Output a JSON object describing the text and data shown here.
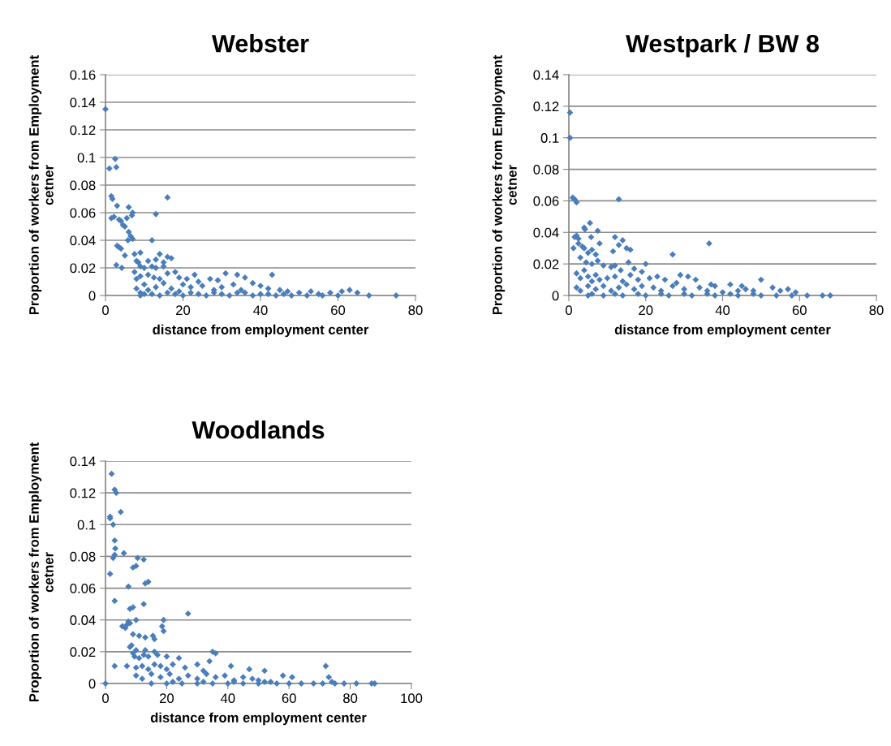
{
  "chart_data": [
    {
      "type": "scatter",
      "title": "Webster",
      "xlabel": "distance from employment center",
      "ylabel": "Proportion of workers from Employment\ncetner",
      "xlim": [
        0,
        80
      ],
      "xticks": [
        0,
        20,
        40,
        60,
        80
      ],
      "ylim": [
        0,
        0.16
      ],
      "yticks": [
        0,
        0.02,
        0.04,
        0.06,
        0.08,
        0.1,
        0.12,
        0.14,
        0.16
      ],
      "grid": "y",
      "marker": "diamond",
      "series": [
        {
          "color": "#4a7ebb",
          "x": [
            0,
            1,
            2.5,
            2.8,
            1.5,
            1.8,
            3,
            6,
            2.2,
            1.5,
            7,
            6.8,
            5.5,
            4,
            3.5,
            4.5,
            5,
            6,
            6.5,
            5.8,
            7,
            13,
            16,
            3,
            3.5,
            4,
            2.8,
            4.2,
            5,
            7.5,
            8,
            8.5,
            9,
            12,
            11,
            13,
            14,
            15,
            16,
            17,
            7.5,
            9,
            10,
            12,
            13,
            15,
            8,
            9,
            11,
            12.5,
            14,
            16,
            18,
            19,
            21,
            23,
            24,
            27,
            29,
            31,
            34,
            36,
            43,
            8,
            9,
            10,
            11,
            13,
            15,
            17,
            19,
            20,
            22,
            25,
            28,
            30,
            33,
            35,
            38,
            40,
            42,
            45,
            47,
            50,
            53,
            55,
            58,
            61,
            63,
            65,
            68,
            75,
            60,
            56,
            52,
            48,
            44,
            38,
            32,
            26,
            20,
            14,
            9,
            12,
            18,
            24,
            30,
            36,
            42,
            46,
            40,
            34,
            28,
            22,
            16,
            10
          ],
          "values": [
            0.135,
            0.092,
            0.099,
            0.093,
            0.072,
            0.07,
            0.065,
            0.064,
            0.057,
            0.056,
            0.06,
            0.058,
            0.056,
            0.054,
            0.055,
            0.051,
            0.05,
            0.046,
            0.043,
            0.04,
            0.041,
            0.059,
            0.071,
            0.036,
            0.035,
            0.034,
            0.022,
            0.02,
            0.029,
            0.03,
            0.025,
            0.024,
            0.031,
            0.04,
            0.025,
            0.026,
            0.03,
            0.024,
            0.028,
            0.027,
            0.017,
            0.021,
            0.02,
            0.021,
            0.02,
            0.021,
            0.012,
            0.014,
            0.015,
            0.013,
            0.012,
            0.016,
            0.017,
            0.013,
            0.012,
            0.015,
            0.01,
            0.012,
            0.011,
            0.016,
            0.015,
            0.013,
            0.015,
            0.005,
            0.002,
            0.008,
            0.004,
            0.006,
            0.009,
            0.005,
            0.003,
            0.008,
            0.006,
            0.007,
            0.004,
            0.006,
            0.008,
            0.004,
            0.009,
            0.007,
            0.005,
            0.004,
            0.003,
            0.002,
            0.003,
            0.001,
            0.002,
            0.003,
            0.004,
            0.002,
            0,
            0,
            0,
            0,
            0,
            0,
            0,
            0,
            0,
            0,
            0,
            0,
            0,
            0.001,
            0.001,
            0.001,
            0.001,
            0.002,
            0.001,
            0.001,
            0.001,
            0.002,
            0.002,
            0.002,
            0.002,
            0.001
          ]
        }
      ]
    },
    {
      "type": "scatter",
      "title": "Westpark / BW 8",
      "xlabel": "distance from employment center",
      "ylabel": "Proportion of workers from Employment\ncetner",
      "xlim": [
        0,
        80
      ],
      "xticks": [
        0,
        20,
        40,
        60,
        80
      ],
      "ylim": [
        0,
        0.14
      ],
      "yticks": [
        0,
        0.02,
        0.04,
        0.06,
        0.08,
        0.1,
        0.12,
        0.14
      ],
      "grid": "y",
      "marker": "diamond",
      "series": [
        {
          "color": "#4a7ebb",
          "x": [
            0.3,
            0.3,
            1,
            1.5,
            2,
            13,
            36.5,
            27,
            5.5,
            4,
            4.2,
            7.5,
            1.5,
            2,
            2.5,
            5.8,
            8,
            12,
            14,
            13,
            11.5,
            15,
            16,
            1.2,
            2.5,
            3.5,
            4,
            5,
            6,
            7,
            3,
            4.5,
            6,
            7.5,
            9,
            11,
            12,
            13.5,
            15.5,
            17,
            19,
            20,
            2,
            3,
            4,
            5,
            6,
            7,
            8,
            10,
            12,
            14,
            16,
            18,
            21,
            23,
            25,
            28,
            29,
            31,
            33,
            37,
            38,
            42,
            45,
            50,
            46,
            48,
            53,
            55,
            57,
            59,
            2,
            3,
            5,
            7,
            9,
            11,
            13,
            15,
            17,
            19,
            22,
            24,
            27,
            30,
            34,
            36,
            40,
            44,
            5,
            9,
            14,
            20,
            26,
            32,
            38,
            44,
            50,
            54,
            58,
            62,
            66,
            68,
            6,
            12,
            18,
            24,
            30,
            36,
            42,
            48
          ],
          "values": [
            0.116,
            0.1,
            0.062,
            0.061,
            0.059,
            0.061,
            0.033,
            0.026,
            0.046,
            0.043,
            0.042,
            0.041,
            0.037,
            0.038,
            0.036,
            0.037,
            0.033,
            0.037,
            0.035,
            0.032,
            0.028,
            0.03,
            0.029,
            0.03,
            0.033,
            0.031,
            0.03,
            0.027,
            0.029,
            0.026,
            0.024,
            0.021,
            0.02,
            0.022,
            0.019,
            0.018,
            0.019,
            0.016,
            0.021,
            0.017,
            0.015,
            0.02,
            0.014,
            0.011,
            0.016,
            0.012,
            0.009,
            0.013,
            0.01,
            0.011,
            0.012,
            0.009,
            0.013,
            0.01,
            0.011,
            0.012,
            0.01,
            0.008,
            0.013,
            0.012,
            0.01,
            0.007,
            0.006,
            0.007,
            0.006,
            0.01,
            0.004,
            0.003,
            0.005,
            0.003,
            0.004,
            0.002,
            0.005,
            0.003,
            0.006,
            0.004,
            0.006,
            0.003,
            0.005,
            0.007,
            0.004,
            0.006,
            0.005,
            0.003,
            0.006,
            0.004,
            0.005,
            0.003,
            0.002,
            0.003,
            0,
            0,
            0,
            0,
            0,
            0,
            0,
            0,
            0,
            0,
            0,
            0,
            0,
            0,
            0.001,
            0.001,
            0.001,
            0.001,
            0.001,
            0.001,
            0.001,
            0.001
          ]
        }
      ]
    },
    {
      "type": "scatter",
      "title": "Woodlands",
      "xlabel": "distance from employment center",
      "ylabel": "Proportion of workers from Employment\ncetner",
      "xlim": [
        0,
        100
      ],
      "xticks": [
        0,
        20,
        40,
        60,
        80,
        100
      ],
      "ylim": [
        0,
        0.14
      ],
      "yticks": [
        0,
        0.02,
        0.04,
        0.06,
        0.08,
        0.1,
        0.12,
        0.14
      ],
      "grid": "y",
      "marker": "diamond",
      "series": [
        {
          "color": "#4a7ebb",
          "x": [
            0,
            2,
            3,
            3.5,
            1.5,
            1.5,
            2.5,
            5,
            3,
            3.2,
            2.5,
            3,
            6,
            1.5,
            3,
            7.5,
            10.5,
            12.5,
            13,
            14,
            9,
            10,
            12.5,
            8,
            9,
            5.5,
            6.5,
            7,
            7.5,
            10,
            19,
            18.5,
            19,
            27,
            8,
            9,
            11,
            13,
            15.5,
            16,
            8,
            8.5,
            10,
            13,
            16,
            9,
            9.5,
            11,
            12.5,
            14,
            17,
            20,
            24,
            3,
            7,
            10,
            12,
            14,
            16,
            18,
            20,
            22,
            26,
            30,
            32,
            35,
            36,
            34,
            41,
            47,
            52,
            58,
            61,
            72,
            73,
            10,
            12,
            15,
            18,
            21,
            24,
            27,
            30,
            33,
            36,
            39,
            42,
            45,
            48,
            50,
            54,
            56,
            60,
            64,
            68,
            71,
            75,
            78,
            82,
            87,
            88,
            15,
            20,
            25,
            30,
            35,
            40,
            45,
            50,
            22,
            32,
            42,
            52,
            74
          ],
          "values": [
            0,
            0.132,
            0.122,
            0.12,
            0.105,
            0.104,
            0.1,
            0.108,
            0.09,
            0.085,
            0.079,
            0.081,
            0.082,
            0.069,
            0.052,
            0.061,
            0.079,
            0.078,
            0.063,
            0.064,
            0.073,
            0.074,
            0.05,
            0.047,
            0.048,
            0.036,
            0.035,
            0.037,
            0.039,
            0.04,
            0.04,
            0.036,
            0.033,
            0.044,
            0.038,
            0.031,
            0.03,
            0.029,
            0.03,
            0.028,
            0.023,
            0.024,
            0.021,
            0.021,
            0.02,
            0.019,
            0.017,
            0.016,
            0.018,
            0.017,
            0.018,
            0.017,
            0.016,
            0.011,
            0.011,
            0.01,
            0.011,
            0.009,
            0.012,
            0.011,
            0.009,
            0.012,
            0.01,
            0.012,
            0.008,
            0.02,
            0.019,
            0.014,
            0.011,
            0.009,
            0.008,
            0.005,
            0.004,
            0.011,
            0.004,
            0.005,
            0.003,
            0.006,
            0.004,
            0.006,
            0.003,
            0.005,
            0.003,
            0.006,
            0.004,
            0.005,
            0.002,
            0.004,
            0.003,
            0.002,
            0.001,
            0,
            0,
            0,
            0,
            0,
            0,
            0,
            0,
            0,
            0,
            0,
            0,
            0,
            0,
            0,
            0,
            0,
            0,
            0.001,
            0.001,
            0.001,
            0.001,
            0.001
          ]
        }
      ]
    }
  ]
}
